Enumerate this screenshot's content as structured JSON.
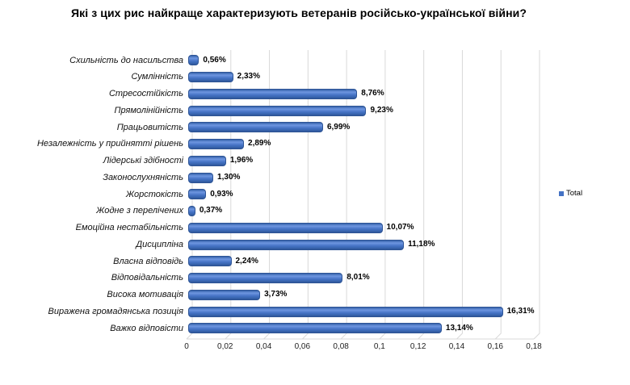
{
  "chart_data": {
    "type": "bar",
    "orientation": "horizontal",
    "title": "Які з цих рис найкраще характеризують ветеранів російсько-української війни?",
    "legend": [
      "Total"
    ],
    "legend_position": "right",
    "categories": [
      "Схильність до насильства",
      "Сумлінність",
      "Стресостійкість",
      "Прямолінійність",
      "Працьовитість",
      "Незалежність у прийнятті рішень",
      "Лідерські здібності",
      "Законослухняність",
      "Жорстокість",
      "Жодне з перелічених",
      "Емоційна нестабільність",
      "Дисципліна",
      "Власна відповідь",
      "Відповідальність",
      "Висока мотивація",
      "Виражена громадянська позиція",
      "Важко відповісти"
    ],
    "values": [
      0.56,
      2.33,
      8.76,
      9.23,
      6.99,
      2.89,
      1.96,
      1.3,
      0.93,
      0.37,
      10.07,
      11.18,
      2.24,
      8.01,
      3.73,
      16.31,
      13.14
    ],
    "value_labels": [
      "0,56%",
      "2,33%",
      "8,76%",
      "9,23%",
      "6,99%",
      "2,89%",
      "1,96%",
      "1,30%",
      "0,93%",
      "0,37%",
      "10,07%",
      "11,18%",
      "2,24%",
      "8,01%",
      "3,73%",
      "16,31%",
      "13,14%"
    ],
    "x_tick_labels": [
      "0",
      "0,02",
      "0,04",
      "0,06",
      "0,08",
      "0,1",
      "0,12",
      "0,14",
      "0,16",
      "0,18"
    ],
    "xlim": [
      0,
      0.18
    ],
    "grid": true,
    "bar_color": "#4472C4",
    "bar_edge_color": "#2F5597",
    "grid_color": "#D9D9D9",
    "background_color": "#FFFFFF"
  }
}
